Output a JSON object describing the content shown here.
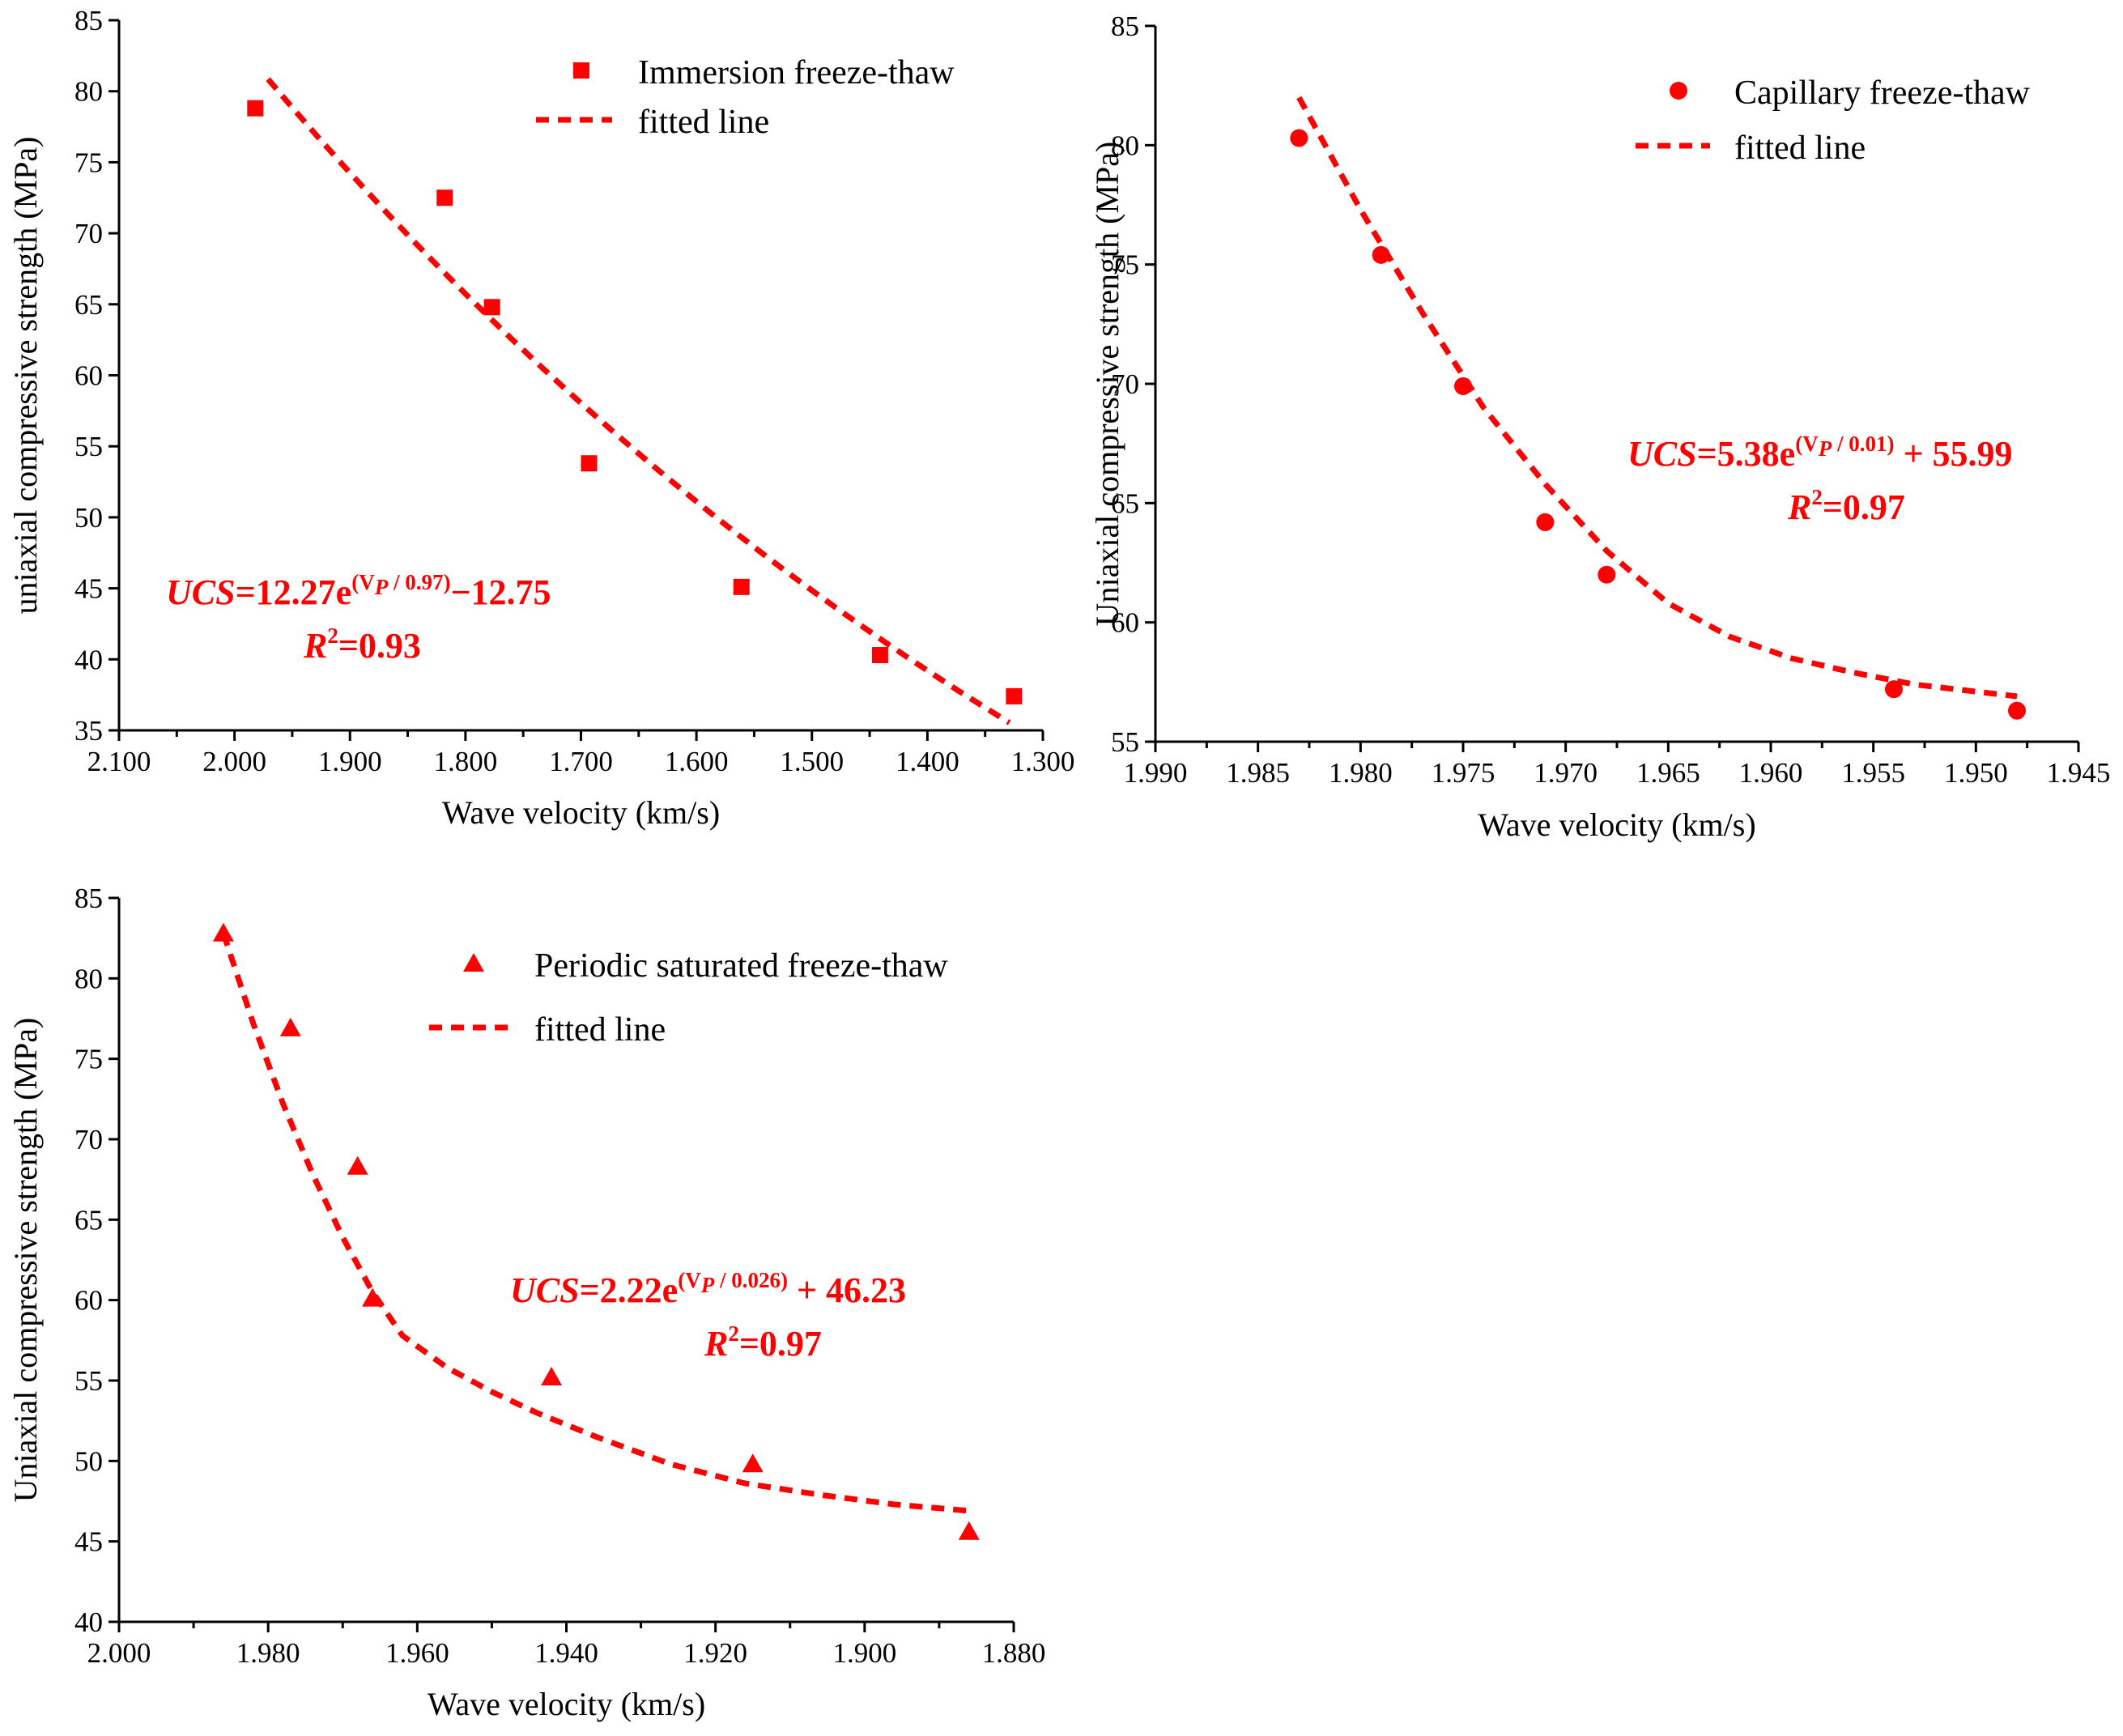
{
  "chart_data": [
    {
      "type": "scatter",
      "panel": "top-left",
      "xlabel": "Wave velocity (km/s)",
      "ylabel": "uniaxial compressive strength (MPa)",
      "xlim": [
        2.1,
        1.3
      ],
      "x_reversed": true,
      "ylim": [
        35,
        85
      ],
      "x_ticks": [
        2.1,
        2.0,
        1.9,
        1.8,
        1.7,
        1.6,
        1.5,
        1.4,
        1.3
      ],
      "x_tick_labels": [
        "2.100",
        "2.000",
        "1.900",
        "1.800",
        "1.700",
        "1.600",
        "1.500",
        "1.400",
        "1.300"
      ],
      "y_ticks": [
        35,
        40,
        45,
        50,
        55,
        60,
        65,
        70,
        75,
        80,
        85
      ],
      "y_tick_labels": [
        "35",
        "40",
        "45",
        "50",
        "55",
        "60",
        "65",
        "70",
        "75",
        "80",
        "85"
      ],
      "marker": "square",
      "color": "#ff0000",
      "series": [
        {
          "name": "Immersion freeze-thaw",
          "kind": "points",
          "x": [
            1.982,
            1.818,
            1.777,
            1.693,
            1.561,
            1.441,
            1.325
          ],
          "y": [
            78.8,
            72.5,
            64.8,
            53.8,
            45.1,
            40.3,
            37.4
          ]
        },
        {
          "name": "fitted line",
          "kind": "fit",
          "x_range": [
            1.971,
            1.329
          ],
          "model": "exp_a_b_c",
          "a": 12.27,
          "b": 0.97,
          "c": -12.75,
          "note": "UCS = a*exp(Vp/b) + c"
        }
      ],
      "legend": [
        "Immersion freeze-thaw",
        "fitted line"
      ],
      "legend_position": "top-right",
      "annotation": {
        "prefix": "UCS",
        "body": "=12.27e",
        "sup": "(V",
        "sub": "P",
        "sup_end": " / 0.97)",
        "tail": "−12.75",
        "r2_label": "R",
        "r2_sup": "2",
        "r2_value": "=0.93"
      }
    },
    {
      "type": "scatter",
      "panel": "top-right",
      "xlabel": "Wave velocity (km/s)",
      "ylabel": "Uniaxial compressive strength (MPa)",
      "xlim": [
        1.99,
        1.945
      ],
      "x_reversed": true,
      "ylim": [
        55,
        85
      ],
      "x_ticks": [
        1.99,
        1.985,
        1.98,
        1.975,
        1.97,
        1.965,
        1.96,
        1.955,
        1.95,
        1.945
      ],
      "x_tick_labels": [
        "1.990",
        "1.985",
        "1.980",
        "1.975",
        "1.970",
        "1.965",
        "1.960",
        "1.955",
        "1.950",
        "1.945"
      ],
      "y_ticks": [
        55,
        60,
        65,
        70,
        75,
        80,
        85
      ],
      "y_tick_labels": [
        "55",
        "60",
        "65",
        "70",
        "75",
        "80",
        "85"
      ],
      "marker": "circle",
      "color": "#ff0000",
      "series": [
        {
          "name": "Capillary freeze-thaw",
          "kind": "points",
          "x": [
            1.983,
            1.979,
            1.975,
            1.971,
            1.968,
            1.954,
            1.948
          ],
          "y": [
            80.3,
            75.4,
            69.9,
            64.2,
            62.0,
            57.2,
            56.3
          ]
        },
        {
          "name": "fitted line",
          "kind": "fit",
          "x_range": [
            1.983,
            1.948
          ],
          "curve": {
            "x": [
              1.983,
              1.98,
              1.977,
              1.974,
              1.971,
              1.968,
              1.965,
              1.962,
              1.959,
              1.956,
              1.953,
              1.95,
              1.948
            ],
            "y": [
              82.0,
              77.3,
              73.0,
              69.0,
              65.8,
              63.0,
              60.8,
              59.4,
              58.5,
              57.9,
              57.4,
              57.1,
              56.9
            ]
          }
        }
      ],
      "legend": [
        "Capillary freeze-thaw",
        "fitted line"
      ],
      "legend_position": "top-right",
      "annotation": {
        "prefix": "UCS",
        "body": "=5.38e",
        "sup": "(V",
        "sub": "P",
        "sup_end": " / 0.01)",
        "tail": " + 55.99",
        "r2_label": "R",
        "r2_sup": "2",
        "r2_value": "=0.97"
      }
    },
    {
      "type": "scatter",
      "panel": "bottom-left",
      "xlabel": "Wave velocity (km/s)",
      "ylabel": "Uniaxial compressive strength (MPa)",
      "xlim": [
        2.0,
        1.88
      ],
      "x_reversed": true,
      "ylim": [
        40,
        85
      ],
      "x_ticks": [
        2.0,
        1.98,
        1.96,
        1.94,
        1.92,
        1.9,
        1.88
      ],
      "x_tick_labels": [
        "2.000",
        "1.980",
        "1.960",
        "1.940",
        "1.920",
        "1.900",
        "1.880"
      ],
      "y_ticks": [
        40,
        45,
        50,
        55,
        60,
        65,
        70,
        75,
        80,
        85
      ],
      "y_tick_labels": [
        "40",
        "45",
        "50",
        "55",
        "60",
        "65",
        "70",
        "75",
        "80",
        "85"
      ],
      "marker": "triangle",
      "color": "#ff0000",
      "series": [
        {
          "name": "Periodic saturated freeze-thaw",
          "kind": "points",
          "x": [
            1.986,
            1.977,
            1.968,
            1.966,
            1.942,
            1.915,
            1.886
          ],
          "y": [
            82.8,
            76.9,
            68.3,
            60.1,
            55.2,
            49.8,
            45.6
          ]
        },
        {
          "name": "fitted line",
          "kind": "fit",
          "x_range": [
            1.986,
            1.886
          ],
          "curve": {
            "x": [
              1.986,
              1.982,
              1.978,
              1.974,
              1.97,
              1.966,
              1.962,
              1.956,
              1.95,
              1.944,
              1.936,
              1.926,
              1.916,
              1.906,
              1.896,
              1.886
            ],
            "y": [
              82.8,
              77.2,
              72.2,
              67.8,
              63.9,
              60.5,
              57.8,
              55.8,
              54.3,
              53.0,
              51.5,
              49.8,
              48.6,
              47.9,
              47.3,
              46.9
            ]
          }
        }
      ],
      "legend": [
        "Periodic saturated freeze-thaw",
        "fitted line"
      ],
      "legend_position": "top-right",
      "annotation": {
        "prefix": "UCS",
        "body": "=2.22e",
        "sup": "(V",
        "sub": "P",
        "sup_end": " / 0.026)",
        "tail": " + 46.23",
        "r2_label": "R",
        "r2_sup": "2",
        "r2_value": "=0.97"
      }
    }
  ]
}
